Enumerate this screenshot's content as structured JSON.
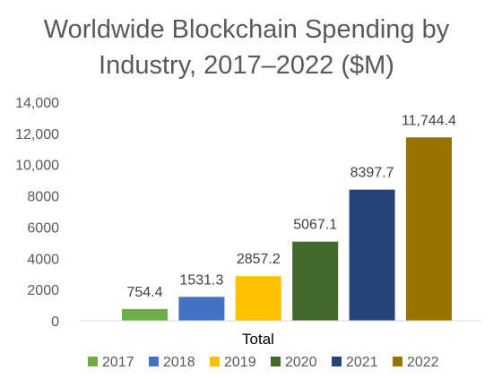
{
  "chart_data": {
    "type": "bar",
    "title_lines": [
      "Worldwide Blockchain Spending by",
      "Industry, 2017–2022 ($M)"
    ],
    "xlabel": "Total",
    "ylabel": "",
    "categories": [
      "Total"
    ],
    "ylim": [
      0,
      14000
    ],
    "yticks": [
      0,
      2000,
      4000,
      6000,
      8000,
      10000,
      12000,
      14000
    ],
    "ytick_labels": [
      "0",
      "2000",
      "4000",
      "6000",
      "8000",
      "10,000",
      "12,000",
      "14,000"
    ],
    "grid": false,
    "legend_position": "bottom",
    "series": [
      {
        "name": "2017",
        "values": [
          754.4
        ],
        "label": "754.4",
        "color": "#70ad47"
      },
      {
        "name": "2018",
        "values": [
          1531.3
        ],
        "label": "1531.3",
        "color": "#4472c4"
      },
      {
        "name": "2019",
        "values": [
          2857.2
        ],
        "label": "2857.2",
        "color": "#ffc000"
      },
      {
        "name": "2020",
        "values": [
          5067.1
        ],
        "label": "5067.1",
        "color": "#43682b"
      },
      {
        "name": "2021",
        "values": [
          8397.7
        ],
        "label": "8397.7",
        "color": "#264478"
      },
      {
        "name": "2022",
        "values": [
          11744.4
        ],
        "label": "11,744.4",
        "color": "#997300"
      }
    ]
  }
}
